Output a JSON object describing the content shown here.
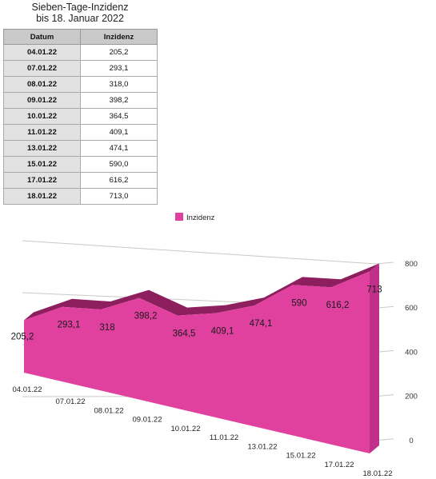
{
  "title_line1": "Sieben-Tage-Inzidenz",
  "title_line2": "bis 18. Januar 2022",
  "table": {
    "headers": [
      "Datum",
      "Inzidenz"
    ],
    "rows": [
      [
        "04.01.22",
        "205,2"
      ],
      [
        "07.01.22",
        "293,1"
      ],
      [
        "08.01.22",
        "318,0"
      ],
      [
        "09.01.22",
        "398,2"
      ],
      [
        "10.01.22",
        "364,5"
      ],
      [
        "11.01.22",
        "409,1"
      ],
      [
        "13.01.22",
        "474,1"
      ],
      [
        "15.01.22",
        "590,0"
      ],
      [
        "17.01.22",
        "616,2"
      ],
      [
        "18.01.22",
        "713,0"
      ]
    ]
  },
  "colors": {
    "area_front": "#e0419f",
    "area_top": "#8e1f5e",
    "area_side": "#c0308a",
    "grid": "#c8c8c8"
  },
  "chart_data": {
    "type": "area",
    "categories": [
      "04.01.22",
      "07.01.22",
      "08.01.22",
      "09.01.22",
      "10.01.22",
      "11.01.22",
      "13.01.22",
      "15.01.22",
      "17.01.22",
      "18.01.22"
    ],
    "series": [
      {
        "name": "Inzidenz",
        "values": [
          205.2,
          293.1,
          318,
          398.2,
          364.5,
          409.1,
          474.1,
          590,
          616.2,
          713
        ]
      }
    ],
    "data_labels": [
      "205,2",
      "293,1",
      "318",
      "398,2",
      "364,5",
      "409,1",
      "474,1",
      "590",
      "616,2",
      "713"
    ],
    "yticks": [
      0,
      200,
      400,
      600,
      800
    ],
    "ylim": [
      0,
      800
    ],
    "grid": true,
    "legend_position": "top-center",
    "perspective": "3d"
  }
}
